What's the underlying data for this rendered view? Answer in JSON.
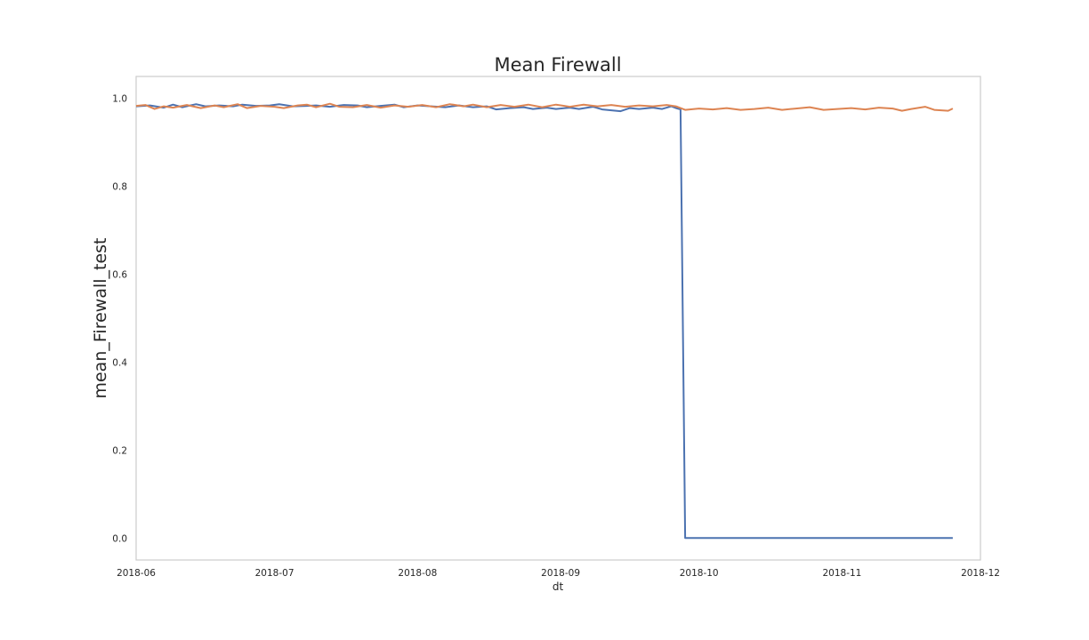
{
  "chart_data": {
    "type": "line",
    "title": "Mean Firewall",
    "xlabel": "dt",
    "ylabel": "mean_Firewall_test",
    "x_type": "date",
    "xlim": [
      "2018-06-01",
      "2018-12-01"
    ],
    "ylim": [
      -0.05,
      1.05
    ],
    "xticks": [
      "2018-06",
      "2018-07",
      "2018-08",
      "2018-09",
      "2018-10",
      "2018-11",
      "2018-12"
    ],
    "yticks": [
      "0.0",
      "0.2",
      "0.4",
      "0.6",
      "0.8",
      "1.0"
    ],
    "grid": false,
    "series": [
      {
        "color": "#4c72b0",
        "points": [
          [
            "2018-06-01",
            0.982
          ],
          [
            "2018-06-04",
            0.984
          ],
          [
            "2018-06-07",
            0.979
          ],
          [
            "2018-06-09",
            0.986
          ],
          [
            "2018-06-11",
            0.98
          ],
          [
            "2018-06-14",
            0.987
          ],
          [
            "2018-06-16",
            0.982
          ],
          [
            "2018-06-19",
            0.984
          ],
          [
            "2018-06-22",
            0.982
          ],
          [
            "2018-06-24",
            0.986
          ],
          [
            "2018-06-27",
            0.983
          ],
          [
            "2018-06-30",
            0.984
          ],
          [
            "2018-07-02",
            0.987
          ],
          [
            "2018-07-05",
            0.982
          ],
          [
            "2018-07-08",
            0.983
          ],
          [
            "2018-07-10",
            0.984
          ],
          [
            "2018-07-13",
            0.981
          ],
          [
            "2018-07-16",
            0.985
          ],
          [
            "2018-07-19",
            0.984
          ],
          [
            "2018-07-21",
            0.98
          ],
          [
            "2018-07-24",
            0.983
          ],
          [
            "2018-07-27",
            0.986
          ],
          [
            "2018-07-29",
            0.98
          ],
          [
            "2018-08-01",
            0.984
          ],
          [
            "2018-08-04",
            0.982
          ],
          [
            "2018-08-07",
            0.98
          ],
          [
            "2018-08-10",
            0.984
          ],
          [
            "2018-08-13",
            0.98
          ],
          [
            "2018-08-16",
            0.982
          ],
          [
            "2018-08-18",
            0.975
          ],
          [
            "2018-08-21",
            0.978
          ],
          [
            "2018-08-24",
            0.98
          ],
          [
            "2018-08-26",
            0.976
          ],
          [
            "2018-08-29",
            0.979
          ],
          [
            "2018-08-31",
            0.976
          ],
          [
            "2018-09-03",
            0.979
          ],
          [
            "2018-09-05",
            0.976
          ],
          [
            "2018-09-08",
            0.981
          ],
          [
            "2018-09-10",
            0.975
          ],
          [
            "2018-09-13",
            0.972
          ],
          [
            "2018-09-14",
            0.971
          ],
          [
            "2018-09-16",
            0.978
          ],
          [
            "2018-09-18",
            0.976
          ],
          [
            "2018-09-21",
            0.979
          ],
          [
            "2018-09-23",
            0.976
          ],
          [
            "2018-09-25",
            0.982
          ],
          [
            "2018-09-26",
            0.978
          ],
          [
            "2018-09-27",
            0.975
          ],
          [
            "2018-09-28",
            0.0
          ],
          [
            "2018-10-15",
            0.0
          ],
          [
            "2018-11-01",
            0.0
          ],
          [
            "2018-11-15",
            0.0
          ],
          [
            "2018-11-25",
            0.0
          ]
        ]
      },
      {
        "color": "#dd8452",
        "points": [
          [
            "2018-06-01",
            0.983
          ],
          [
            "2018-06-03",
            0.985
          ],
          [
            "2018-06-05",
            0.976
          ],
          [
            "2018-06-07",
            0.982
          ],
          [
            "2018-06-09",
            0.979
          ],
          [
            "2018-06-12",
            0.985
          ],
          [
            "2018-06-15",
            0.978
          ],
          [
            "2018-06-18",
            0.984
          ],
          [
            "2018-06-20",
            0.98
          ],
          [
            "2018-06-23",
            0.987
          ],
          [
            "2018-06-25",
            0.978
          ],
          [
            "2018-06-28",
            0.983
          ],
          [
            "2018-07-01",
            0.981
          ],
          [
            "2018-07-03",
            0.978
          ],
          [
            "2018-07-06",
            0.984
          ],
          [
            "2018-07-08",
            0.986
          ],
          [
            "2018-07-10",
            0.98
          ],
          [
            "2018-07-13",
            0.988
          ],
          [
            "2018-07-15",
            0.981
          ],
          [
            "2018-07-18",
            0.98
          ],
          [
            "2018-07-21",
            0.985
          ],
          [
            "2018-07-24",
            0.979
          ],
          [
            "2018-07-27",
            0.984
          ],
          [
            "2018-07-30",
            0.981
          ],
          [
            "2018-08-02",
            0.985
          ],
          [
            "2018-08-05",
            0.98
          ],
          [
            "2018-08-08",
            0.987
          ],
          [
            "2018-08-11",
            0.982
          ],
          [
            "2018-08-13",
            0.986
          ],
          [
            "2018-08-16",
            0.98
          ],
          [
            "2018-08-19",
            0.985
          ],
          [
            "2018-08-22",
            0.981
          ],
          [
            "2018-08-25",
            0.986
          ],
          [
            "2018-08-28",
            0.98
          ],
          [
            "2018-08-31",
            0.986
          ],
          [
            "2018-09-03",
            0.981
          ],
          [
            "2018-09-06",
            0.986
          ],
          [
            "2018-09-09",
            0.982
          ],
          [
            "2018-09-12",
            0.985
          ],
          [
            "2018-09-15",
            0.981
          ],
          [
            "2018-09-18",
            0.984
          ],
          [
            "2018-09-21",
            0.982
          ],
          [
            "2018-09-24",
            0.985
          ],
          [
            "2018-09-26",
            0.982
          ],
          [
            "2018-09-28",
            0.974
          ],
          [
            "2018-10-01",
            0.977
          ],
          [
            "2018-10-04",
            0.975
          ],
          [
            "2018-10-07",
            0.978
          ],
          [
            "2018-10-10",
            0.974
          ],
          [
            "2018-10-13",
            0.976
          ],
          [
            "2018-10-16",
            0.979
          ],
          [
            "2018-10-19",
            0.974
          ],
          [
            "2018-10-22",
            0.977
          ],
          [
            "2018-10-25",
            0.98
          ],
          [
            "2018-10-28",
            0.974
          ],
          [
            "2018-10-31",
            0.976
          ],
          [
            "2018-11-03",
            0.978
          ],
          [
            "2018-11-06",
            0.975
          ],
          [
            "2018-11-09",
            0.979
          ],
          [
            "2018-11-12",
            0.977
          ],
          [
            "2018-11-14",
            0.972
          ],
          [
            "2018-11-16",
            0.976
          ],
          [
            "2018-11-19",
            0.981
          ],
          [
            "2018-11-21",
            0.974
          ],
          [
            "2018-11-24",
            0.972
          ],
          [
            "2018-11-25",
            0.977
          ]
        ]
      }
    ]
  }
}
